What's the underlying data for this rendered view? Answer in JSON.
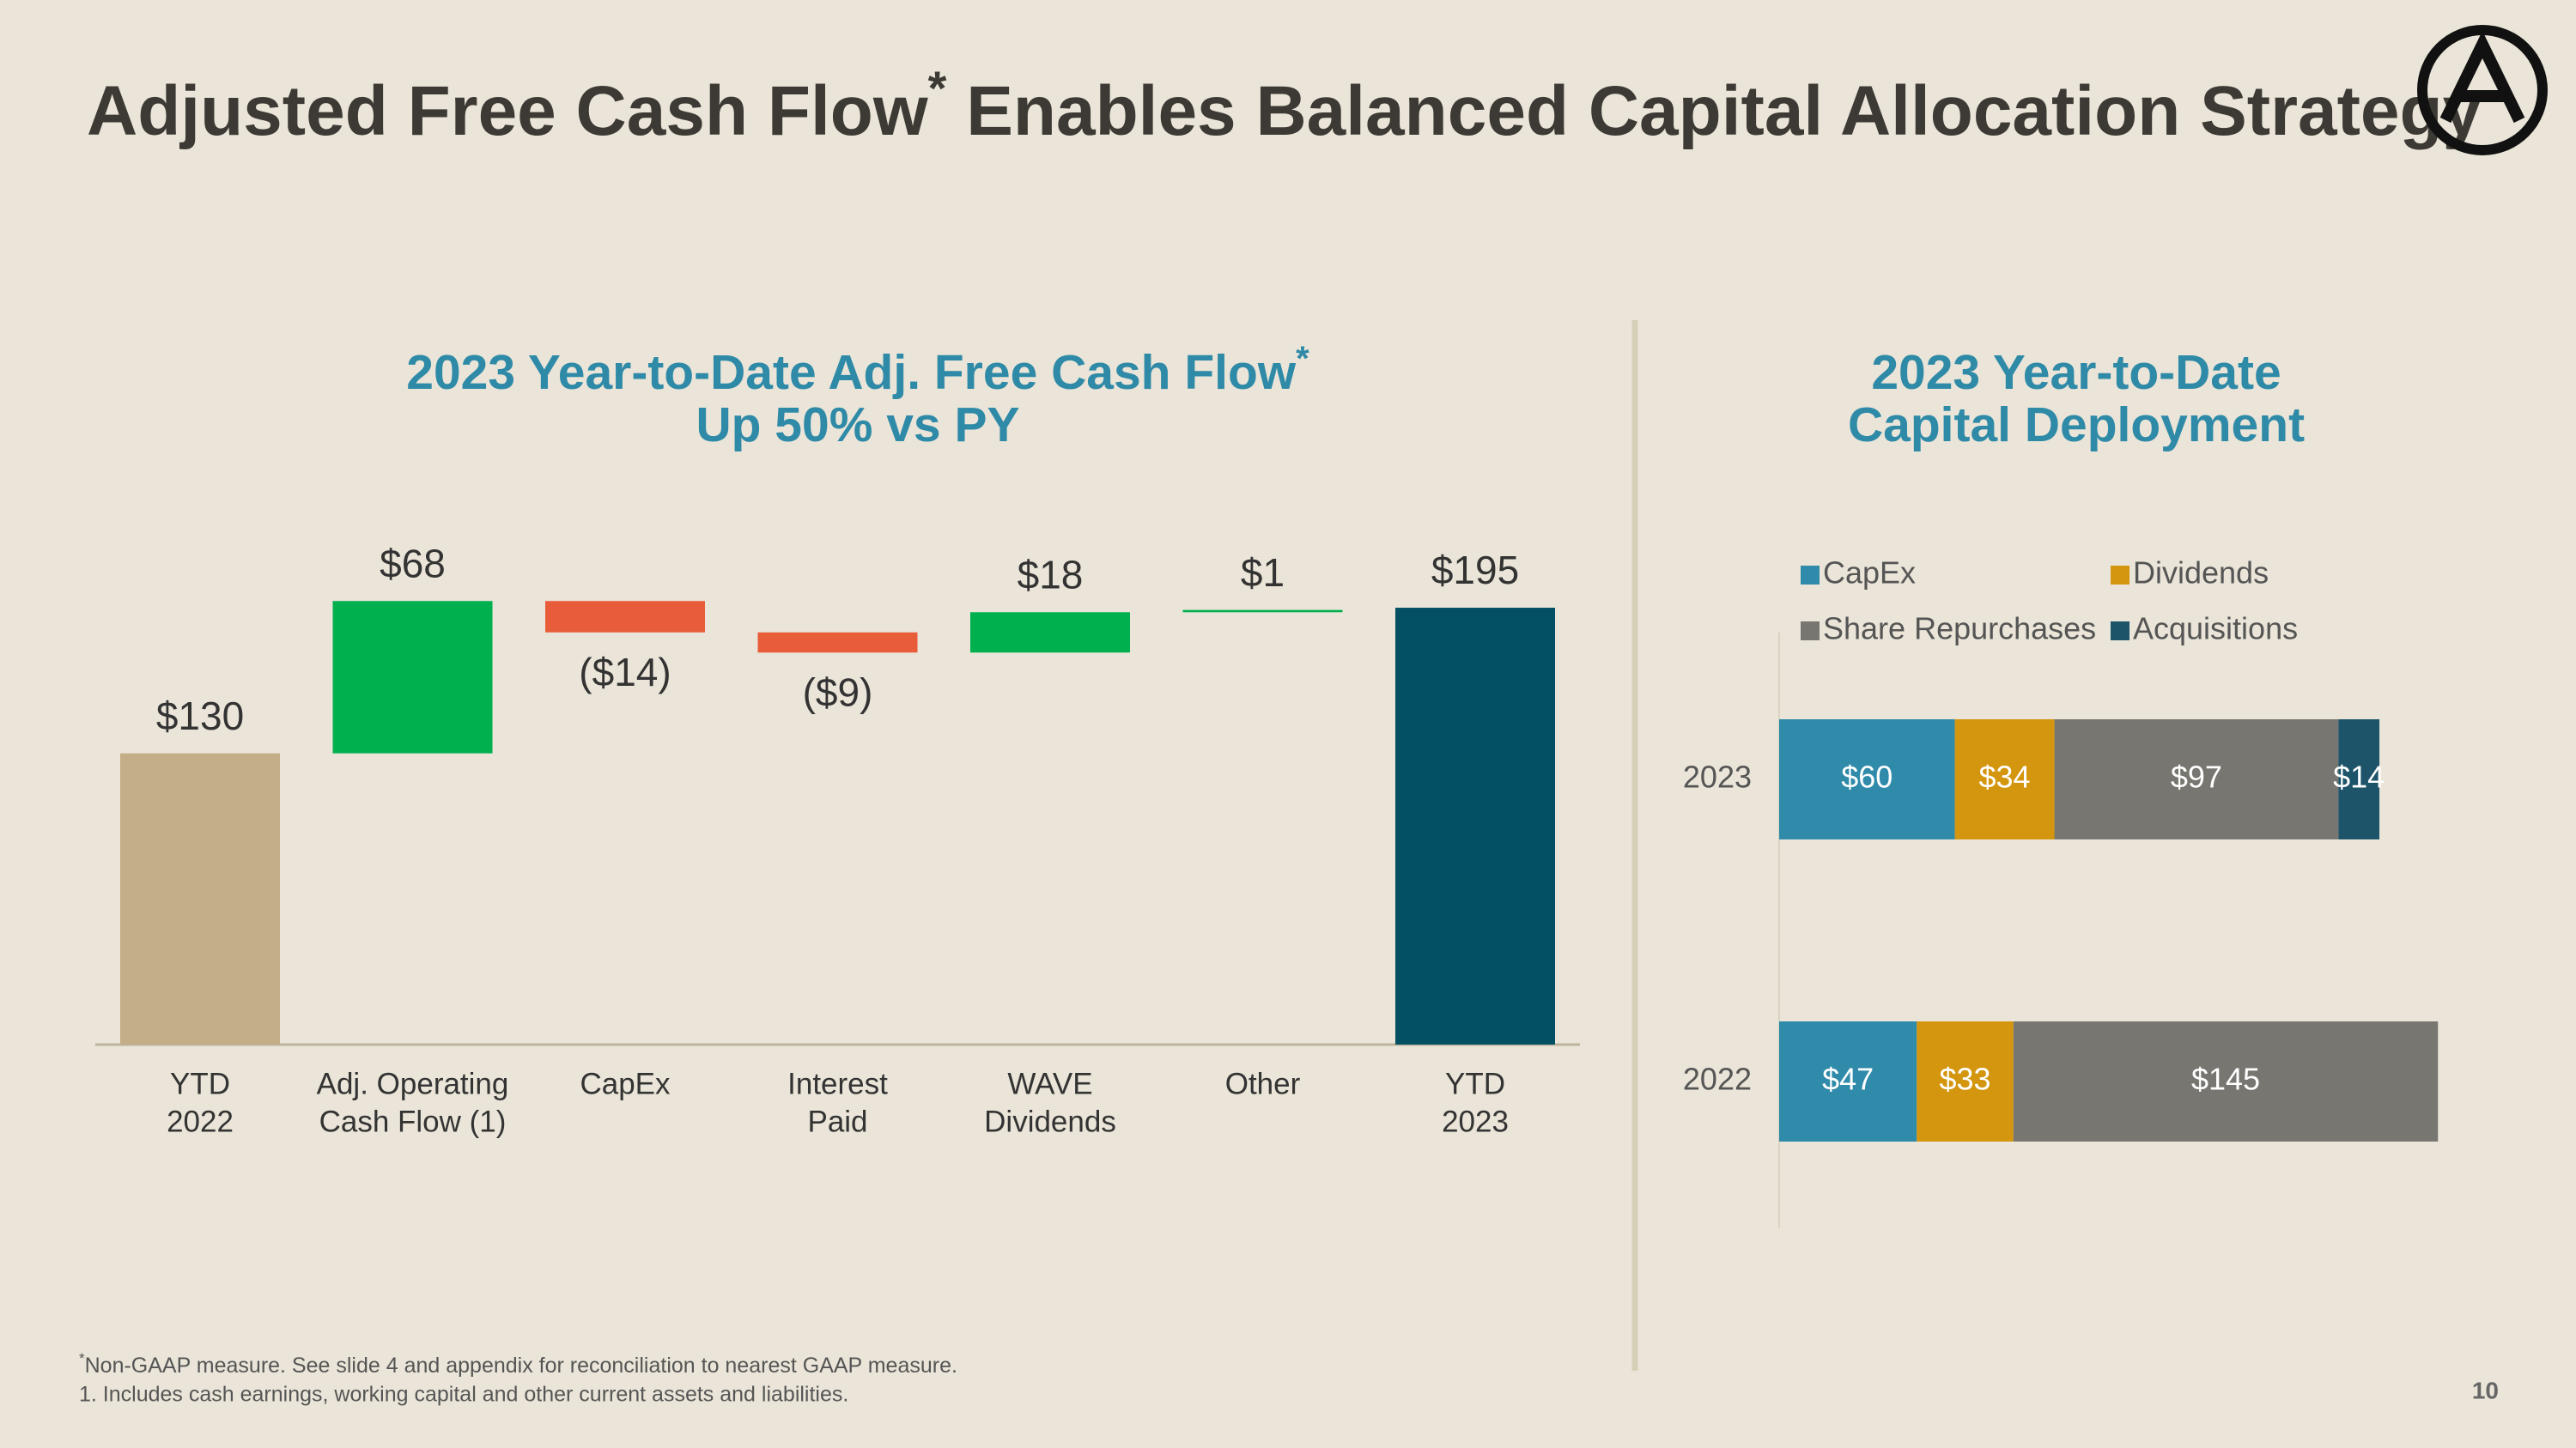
{
  "header": {
    "title": "Adjusted Free Cash Flow",
    "title_mark": "*",
    "title_rest": " Enables Balanced Capital Allocation Strategy"
  },
  "chart_data": [
    {
      "type": "waterfall",
      "title": [
        "2023 Year-to-Date Adj. Free Cash Flow",
        "Up 50% vs PY"
      ],
      "title_mark": "*",
      "categories": [
        [
          "YTD",
          "2022"
        ],
        [
          "Adj. Operating",
          "Cash Flow (1)"
        ],
        [
          "CapEx"
        ],
        [
          "Interest",
          "Paid"
        ],
        [
          "WAVE",
          "Dividends"
        ],
        [
          "Other"
        ],
        [
          "YTD",
          "2023"
        ]
      ],
      "values": [
        130,
        68,
        -14,
        -9,
        18,
        1,
        195
      ],
      "value_labels": [
        "$130",
        "$68",
        "($14)",
        "($9)",
        "$18",
        "$1",
        "$195"
      ],
      "measure": [
        "absolute",
        "relative",
        "relative",
        "relative",
        "relative",
        "relative",
        "total"
      ],
      "colors": {
        "absolute": "#c4ae88",
        "increase": "#00b04f",
        "decrease": "#e85c3a",
        "total": "#034f64"
      }
    },
    {
      "type": "stacked_barh",
      "title": [
        "2023 Year-to-Date",
        "Capital Deployment"
      ],
      "categories": [
        "2023",
        "2022"
      ],
      "series": [
        {
          "name": "CapEx",
          "color": "#308aaa",
          "values": [
            60,
            47
          ],
          "value_labels": [
            "$60",
            "$47"
          ]
        },
        {
          "name": "Dividends",
          "color": "#d4950f",
          "values": [
            34,
            33
          ],
          "value_labels": [
            "$34",
            "$33"
          ]
        },
        {
          "name": "Share Repurchases",
          "color": "#777670",
          "values": [
            97,
            145
          ],
          "value_labels": [
            "$97",
            "$145"
          ]
        },
        {
          "name": "Acquisitions",
          "color": "#1e5469",
          "values": [
            14,
            null
          ],
          "value_labels": [
            "$14",
            null
          ]
        }
      ]
    }
  ],
  "footnotes": {
    "mark": "*",
    "note1": "Non-GAAP measure. See slide 4 and appendix for reconciliation to nearest GAAP measure.",
    "note2": "1. Includes cash earnings, working capital and other current assets and liabilities."
  },
  "page_number": "10"
}
